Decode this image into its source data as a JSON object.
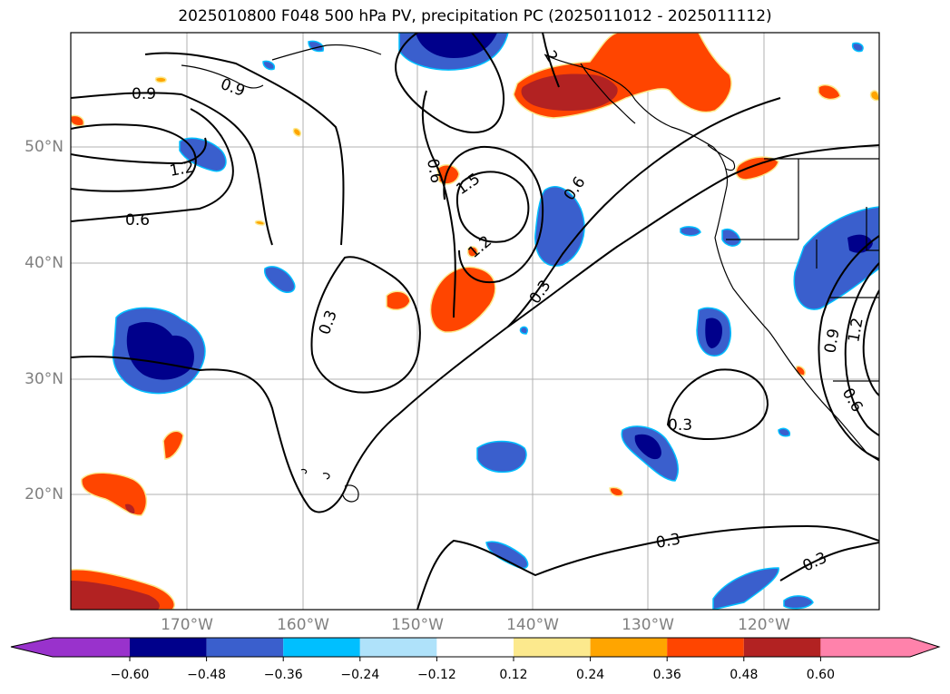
{
  "title": "2025010800 F048 500 hPa PV, precipitation PC (2025011012 - 2025011112)",
  "lat_labels": [
    "50°N",
    "40°N",
    "30°N",
    "20°N"
  ],
  "lon_labels": [
    "170°W",
    "160°W",
    "150°W",
    "140°W",
    "130°W",
    "120°W"
  ],
  "contour_labels": {
    "c09_top": "0.9",
    "c09_left": "0.9",
    "c12_left": "1.2",
    "c06_left": "0.6",
    "c06_mid": "0.6",
    "c15": "1.5",
    "c12_mid": "1.2",
    "c06_right": "0.6",
    "c03_mid": "0.3",
    "c03_left": "0.3",
    "c03_se": "0.3",
    "c03_bot": "0.3",
    "c03_br": "0.3",
    "c09_coast": "0.9",
    "c12_coast": "1.2",
    "c06_coast": "0.6",
    "c2_top": "2"
  },
  "colorbar": {
    "ticks": [
      "−0.60",
      "−0.48",
      "−0.36",
      "−0.24",
      "−0.12",
      "0.12",
      "0.24",
      "0.36",
      "0.48",
      "0.60"
    ],
    "colors": [
      "#9932cc",
      "#00008b",
      "#3a5fcd",
      "#00bfff",
      "#afe2fa",
      "#ffffff",
      "#fce98d",
      "#ffa500",
      "#ff4500",
      "#b22222",
      "#ff82ab"
    ]
  }
}
